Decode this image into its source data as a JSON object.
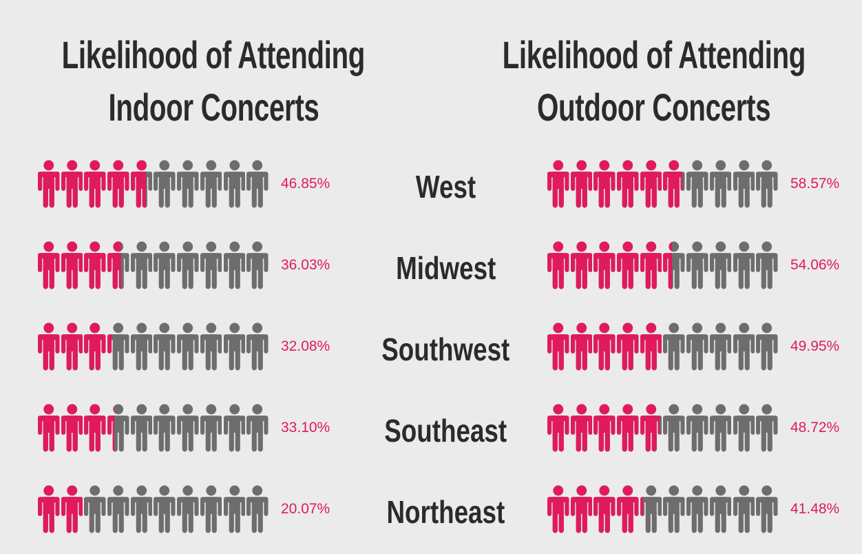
{
  "background_color": "#ebebeb",
  "colors": {
    "filled_icon": "#e01a5b",
    "unfilled_icon": "#6d6d6d",
    "title_text": "#2b2b2b",
    "value_text": "#e01a5b"
  },
  "titles": {
    "indoor": {
      "line1": "Likelihood of Attending",
      "line2": "Indoor Concerts"
    },
    "outdoor": {
      "line1": "Likelihood of Attending",
      "line2": "Outdoor Concerts"
    }
  },
  "chart_data": [
    {
      "type": "pictogram",
      "title": "Likelihood of Attending Indoor Concerts",
      "icon": "person",
      "icons_per_row": 10,
      "unit": "%",
      "fill_direction": "left-to-right",
      "categories": [
        "West",
        "Midwest",
        "Southwest",
        "Southeast",
        "Northeast"
      ],
      "values": [
        46.85,
        36.03,
        32.08,
        33.1,
        20.07
      ],
      "value_labels": [
        "46.85%",
        "36.03%",
        "32.08%",
        "33.10%",
        "20.07%"
      ]
    },
    {
      "type": "pictogram",
      "title": "Likelihood of Attending Outdoor Concerts",
      "icon": "person",
      "icons_per_row": 10,
      "unit": "%",
      "fill_direction": "left-to-right",
      "categories": [
        "West",
        "Midwest",
        "Southwest",
        "Southeast",
        "Northeast"
      ],
      "values": [
        58.57,
        54.06,
        49.95,
        48.72,
        41.48
      ],
      "value_labels": [
        "58.57%",
        "54.06%",
        "49.95%",
        "48.72%",
        "41.48%"
      ]
    }
  ]
}
